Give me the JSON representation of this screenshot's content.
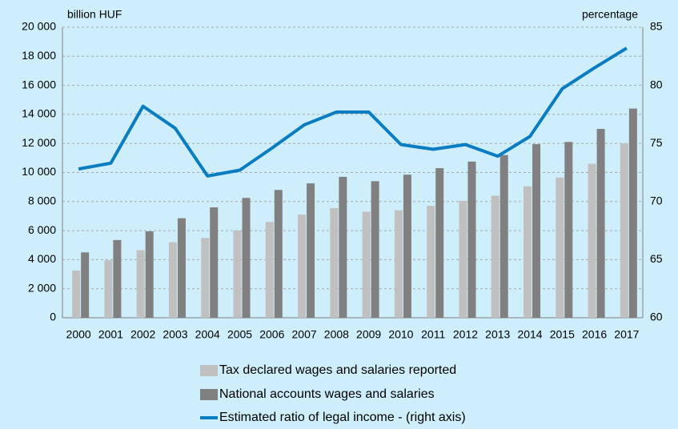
{
  "chart_data": {
    "type": "bar",
    "y_label": "billion HUF",
    "y2_label": "percentage",
    "categories": [
      "2000",
      "2001",
      "2002",
      "2003",
      "2004",
      "2005",
      "2006",
      "2007",
      "2008",
      "2009",
      "2010",
      "2011",
      "2012",
      "2013",
      "2014",
      "2015",
      "2016",
      "2017"
    ],
    "series": [
      {
        "name": "Tax declared wages and salaries reported",
        "color": "#c0c0c0",
        "type": "bar",
        "values": [
          3250,
          3950,
          4650,
          5200,
          5500,
          6000,
          6600,
          7100,
          7550,
          7300,
          7400,
          7700,
          8050,
          8400,
          9050,
          9650,
          10600,
          12000
        ]
      },
      {
        "name": "National accounts wages and salaries",
        "color": "#808080",
        "type": "bar",
        "values": [
          4500,
          5350,
          5950,
          6850,
          7600,
          8250,
          8800,
          9250,
          9700,
          9400,
          9850,
          10300,
          10750,
          11200,
          11950,
          12100,
          13000,
          14400
        ]
      },
      {
        "name": "Estimated ratio of legal income - (right axis)",
        "color": "#0a7cc2",
        "type": "line",
        "axis": "y2",
        "values": [
          72.8,
          73.3,
          78.2,
          76.3,
          72.2,
          72.7,
          74.6,
          76.6,
          77.7,
          77.7,
          74.9,
          74.5,
          74.9,
          73.9,
          75.6,
          79.7,
          81.5,
          83.2
        ]
      }
    ],
    "ylim": [
      0,
      20000
    ],
    "yticks": [
      0,
      {
        "value": 2000,
        "label": "2 000"
      },
      {
        "value": 4000,
        "label": "4 000"
      },
      {
        "value": 6000,
        "label": "6 000"
      },
      {
        "value": 8000,
        "label": "8 000"
      },
      {
        "value": 10000,
        "label": "10 000"
      },
      {
        "value": 12000,
        "label": "12 000"
      },
      {
        "value": 14000,
        "label": "14 000"
      },
      {
        "value": 16000,
        "label": "16 000"
      },
      {
        "value": 18000,
        "label": "18 000"
      },
      {
        "value": 20000,
        "label": "20 000"
      }
    ],
    "y2lim": [
      60,
      85
    ],
    "y2ticks": [
      60,
      65,
      70,
      75,
      80,
      85
    ],
    "grid": true
  }
}
